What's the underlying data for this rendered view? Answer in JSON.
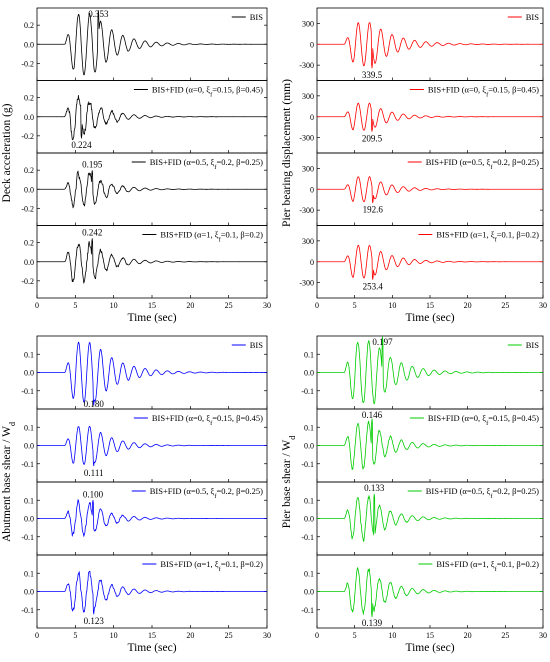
{
  "chart_data": [
    {
      "type": "line",
      "group": "deck",
      "ylabel": "Deck acceleration (g)",
      "xlabel": "Time (sec)",
      "color": "#000000",
      "xlim": [
        0,
        30
      ],
      "xticks": [
        "0",
        "5",
        "10",
        "15",
        "20",
        "25",
        "30"
      ],
      "panels": [
        {
          "legend": "BIS",
          "legend_parts": [
            {
              "t": "BIS"
            }
          ],
          "ylim": [
            -0.38,
            0.38
          ],
          "yticks": [
            -0.2,
            0.0,
            0.2
          ],
          "peak_label": "0.353",
          "peak": {
            "x": 8.0,
            "y": 0.353
          },
          "signal": {
            "t0": 3.6,
            "period": 1.45,
            "amp": 0.32,
            "rise": 1.3,
            "ref": 7.4,
            "decay": 0.33,
            "noise": 0.015
          }
        },
        {
          "legend": "BIS+FID (α=0, ξf=0.15, β=0.45)",
          "legend_parts": [
            {
              "t": "BIS+FID (α=0, ξ"
            },
            {
              "t": "f",
              "sub": true
            },
            {
              "t": "=0.15, β=0.45)"
            }
          ],
          "ylim": [
            -0.38,
            0.38
          ],
          "yticks": [
            -0.2,
            0.0,
            0.2
          ],
          "peak_label": "0.224",
          "peak": {
            "x": 5.8,
            "y": -0.224
          },
          "signal": {
            "t0": 3.6,
            "period": 1.45,
            "amp": 0.2,
            "rise": 0.9,
            "ref": 6.2,
            "decay": 0.35,
            "noise": 0.06
          }
        },
        {
          "legend": "BIS+FID (α=0.5, ξf=0.2, β=0.25)",
          "legend_parts": [
            {
              "t": "BIS+FID (α=0.5, ξ"
            },
            {
              "t": "f",
              "sub": true
            },
            {
              "t": "=0.2, β=0.25)"
            }
          ],
          "ylim": [
            -0.38,
            0.38
          ],
          "yticks": [
            -0.2,
            0.0,
            0.2
          ],
          "peak_label": "0.195",
          "peak": {
            "x": 7.2,
            "y": 0.195
          },
          "signal": {
            "t0": 3.6,
            "period": 1.45,
            "amp": 0.17,
            "rise": 1.0,
            "ref": 6.8,
            "decay": 0.36,
            "noise": 0.05
          }
        },
        {
          "legend": "BIS+FID (α=1, ξf=0.1, β=0.2)",
          "legend_parts": [
            {
              "t": "BIS+FID (α=1, ξ"
            },
            {
              "t": "f",
              "sub": true
            },
            {
              "t": "=0.1, β=0.2)"
            }
          ],
          "ylim": [
            -0.38,
            0.38
          ],
          "yticks": [
            -0.2,
            0.0,
            0.2
          ],
          "peak_label": "0.242",
          "peak": {
            "x": 7.2,
            "y": 0.242
          },
          "signal": {
            "t0": 3.6,
            "period": 1.45,
            "amp": 0.2,
            "rise": 1.0,
            "ref": 6.8,
            "decay": 0.35,
            "noise": 0.045
          }
        }
      ]
    },
    {
      "type": "line",
      "group": "pier-displacement",
      "ylabel": "Pier bearing displacement (mm)",
      "xlabel": "Time (sec)",
      "color": "#ff0000",
      "xlim": [
        0,
        30
      ],
      "xticks": [
        "0",
        "5",
        "10",
        "15",
        "20",
        "25",
        "30"
      ],
      "panels": [
        {
          "legend": "BIS",
          "legend_parts": [
            {
              "t": "BIS"
            }
          ],
          "ylim": [
            -520,
            520
          ],
          "yticks": [
            -300,
            0,
            300
          ],
          "peak_label": "339.5",
          "peak": {
            "x": 7.3,
            "y": -339.5
          },
          "signal": {
            "t0": 3.6,
            "period": 1.5,
            "amp": 310,
            "rise": 1.4,
            "ref": 7.3,
            "decay": 0.3,
            "noise": 4
          }
        },
        {
          "legend": "BIS+FID (α=0, ξf=0.15, β=0.45)",
          "legend_parts": [
            {
              "t": "BIS+FID (α=0, ξ"
            },
            {
              "t": "f",
              "sub": true
            },
            {
              "t": "=0.15, β=0.45)"
            }
          ],
          "ylim": [
            -520,
            520
          ],
          "yticks": [
            -300,
            0,
            300
          ],
          "peak_label": "209.5",
          "peak": {
            "x": 7.3,
            "y": -209.5
          },
          "signal": {
            "t0": 3.6,
            "period": 1.5,
            "amp": 195,
            "rise": 1.2,
            "ref": 7.0,
            "decay": 0.36,
            "noise": 4
          }
        },
        {
          "legend": "BIS+FID (α=0.5, ξf=0.2, β=0.25)",
          "legend_parts": [
            {
              "t": "BIS+FID (α=0.5, ξ"
            },
            {
              "t": "f",
              "sub": true
            },
            {
              "t": "=0.2, β=0.25)"
            }
          ],
          "ylim": [
            -520,
            520
          ],
          "yticks": [
            -300,
            0,
            300
          ],
          "peak_label": "192.6",
          "peak": {
            "x": 7.4,
            "y": -192.6
          },
          "signal": {
            "t0": 3.6,
            "period": 1.5,
            "amp": 180,
            "rise": 1.2,
            "ref": 7.0,
            "decay": 0.36,
            "noise": 4
          }
        },
        {
          "legend": "BIS+FID (α=1, ξf=0.1, β=0.2)",
          "legend_parts": [
            {
              "t": "BIS+FID (α=1, ξ"
            },
            {
              "t": "f",
              "sub": true
            },
            {
              "t": "=0.1, β=0.2)"
            }
          ],
          "ylim": [
            -520,
            520
          ],
          "yticks": [
            -300,
            0,
            300
          ],
          "peak_label": "253.4",
          "peak": {
            "x": 7.4,
            "y": -253.4
          },
          "signal": {
            "t0": 3.6,
            "period": 1.5,
            "amp": 235,
            "rise": 1.2,
            "ref": 7.1,
            "decay": 0.34,
            "noise": 4
          }
        }
      ]
    },
    {
      "type": "line",
      "group": "abutment-shear",
      "ylabel": "Abutment base shear / W",
      "ylabel_sub": "d",
      "xlabel": "Time (sec)",
      "color": "#0000ff",
      "xlim": [
        0,
        30
      ],
      "xticks": [
        "0",
        "5",
        "10",
        "15",
        "20",
        "25",
        "30"
      ],
      "panels": [
        {
          "legend": "BIS",
          "legend_parts": [
            {
              "t": "BIS"
            }
          ],
          "ylim": [
            -0.2,
            0.2
          ],
          "yticks": [
            -0.1,
            0.0,
            0.1
          ],
          "peak_label": "0.180",
          "peak": {
            "x": 7.4,
            "y": -0.18
          },
          "signal": {
            "t0": 3.6,
            "period": 1.45,
            "amp": 0.165,
            "rise": 1.3,
            "ref": 7.4,
            "decay": 0.3,
            "noise": 0.004
          }
        },
        {
          "legend": "BIS+FID (α=0, ξf=0.15, β=0.45)",
          "legend_parts": [
            {
              "t": "BIS+FID (α=0, ξ"
            },
            {
              "t": "f",
              "sub": true
            },
            {
              "t": "=0.15, β=0.45)"
            }
          ],
          "ylim": [
            -0.2,
            0.2
          ],
          "yticks": [
            -0.1,
            0.0,
            0.1
          ],
          "peak_label": "0.111",
          "peak": {
            "x": 7.4,
            "y": -0.111
          },
          "signal": {
            "t0": 3.6,
            "period": 1.45,
            "amp": 0.105,
            "rise": 1.2,
            "ref": 7.2,
            "decay": 0.35,
            "noise": 0.004
          }
        },
        {
          "legend": "BIS+FID (α=0.5, ξf=0.2, β=0.25)",
          "legend_parts": [
            {
              "t": "BIS+FID (α=0.5, ξ"
            },
            {
              "t": "f",
              "sub": true
            },
            {
              "t": "=0.2, β=0.25)"
            }
          ],
          "ylim": [
            -0.2,
            0.2
          ],
          "yticks": [
            -0.1,
            0.0,
            0.1
          ],
          "peak_label": "0.100",
          "peak": {
            "x": 7.3,
            "y": 0.1
          },
          "signal": {
            "t0": 3.6,
            "period": 1.45,
            "amp": 0.09,
            "rise": 1.0,
            "ref": 6.8,
            "decay": 0.36,
            "noise": 0.02
          }
        },
        {
          "legend": "BIS+FID (α=1, ξf=0.1, β=0.2)",
          "legend_parts": [
            {
              "t": "BIS+FID (α=1, ξ"
            },
            {
              "t": "f",
              "sub": true
            },
            {
              "t": "=0.1, β=0.2)"
            }
          ],
          "ylim": [
            -0.2,
            0.2
          ],
          "yticks": [
            -0.1,
            0.0,
            0.1
          ],
          "peak_label": "0.123",
          "peak": {
            "x": 7.4,
            "y": -0.123
          },
          "signal": {
            "t0": 3.6,
            "period": 1.45,
            "amp": 0.105,
            "rise": 1.0,
            "ref": 6.8,
            "decay": 0.35,
            "noise": 0.022
          }
        }
      ]
    },
    {
      "type": "line",
      "group": "pier-shear",
      "ylabel": "Pier base shear / W",
      "ylabel_sub": "d",
      "xlabel": "Time (sec)",
      "color": "#00cc00",
      "xlim": [
        0,
        30
      ],
      "xticks": [
        "0",
        "5",
        "10",
        "15",
        "20",
        "25",
        "30"
      ],
      "panels": [
        {
          "legend": "BIS",
          "legend_parts": [
            {
              "t": "BIS"
            }
          ],
          "ylim": [
            -0.2,
            0.2
          ],
          "yticks": [
            -0.1,
            0.0,
            0.1
          ],
          "peak_label": "0.197",
          "peak": {
            "x": 8.7,
            "y": 0.197
          },
          "signal": {
            "t0": 3.6,
            "period": 1.45,
            "amp": 0.17,
            "rise": 1.3,
            "ref": 7.6,
            "decay": 0.32,
            "noise": 0.012
          }
        },
        {
          "legend": "BIS+FID (α=0, ξf=0.15, β=0.45)",
          "legend_parts": [
            {
              "t": "BIS+FID (α=0, ξ"
            },
            {
              "t": "f",
              "sub": true
            },
            {
              "t": "=0.15, β=0.45)"
            }
          ],
          "ylim": [
            -0.2,
            0.2
          ],
          "yticks": [
            -0.1,
            0.0,
            0.1
          ],
          "peak_label": "0.146",
          "peak": {
            "x": 7.3,
            "y": 0.146
          },
          "signal": {
            "t0": 3.6,
            "period": 1.45,
            "amp": 0.125,
            "rise": 1.1,
            "ref": 7.0,
            "decay": 0.35,
            "noise": 0.018
          }
        },
        {
          "legend": "BIS+FID (α=0.5, ξf=0.2, β=0.25)",
          "legend_parts": [
            {
              "t": "BIS+FID (α=0.5, ξ"
            },
            {
              "t": "f",
              "sub": true
            },
            {
              "t": "=0.2, β=0.25)"
            }
          ],
          "ylim": [
            -0.2,
            0.2
          ],
          "yticks": [
            -0.1,
            0.0,
            0.1
          ],
          "peak_label": "0.133",
          "peak": {
            "x": 7.6,
            "y": 0.133
          },
          "signal": {
            "t0": 3.6,
            "period": 1.45,
            "amp": 0.115,
            "rise": 1.1,
            "ref": 7.0,
            "decay": 0.36,
            "noise": 0.018
          }
        },
        {
          "legend": "BIS+FID (α=1, ξf=0.1, β=0.2)",
          "legend_parts": [
            {
              "t": "BIS+FID (α=1, ξ"
            },
            {
              "t": "f",
              "sub": true
            },
            {
              "t": "=0.1, β=0.2)"
            }
          ],
          "ylim": [
            -0.2,
            0.2
          ],
          "yticks": [
            -0.1,
            0.0,
            0.1
          ],
          "peak_label": "0.139",
          "peak": {
            "x": 7.3,
            "y": -0.139
          },
          "signal": {
            "t0": 3.6,
            "period": 1.45,
            "amp": 0.12,
            "rise": 1.1,
            "ref": 7.0,
            "decay": 0.35,
            "noise": 0.02
          }
        }
      ]
    }
  ]
}
